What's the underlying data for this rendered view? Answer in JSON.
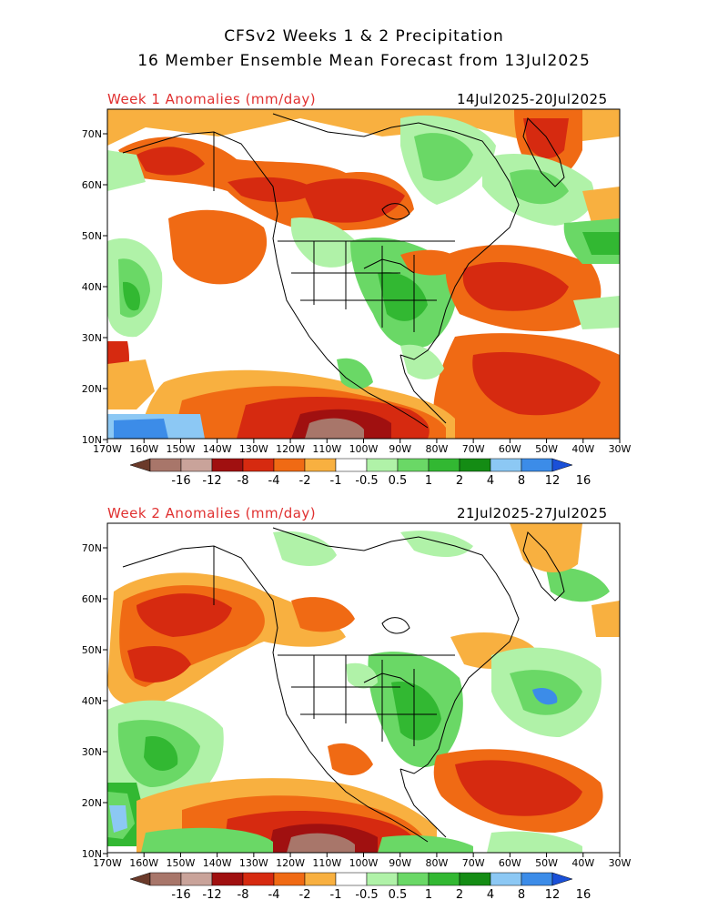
{
  "title_line1": "CFSv2 Weeks 1 & 2 Precipitation",
  "title_line2": "16 Member Ensemble Mean Forecast from 13Jul2025",
  "panels": [
    {
      "label": "Week 1 Anomalies (mm/day)",
      "dates": "14Jul2025-20Jul2025"
    },
    {
      "label": "Week 2 Anomalies (mm/day)",
      "dates": "21Jul2025-27Jul2025"
    }
  ],
  "lat_labels": [
    "70N",
    "60N",
    "50N",
    "40N",
    "30N",
    "20N",
    "10N"
  ],
  "lon_labels": [
    "170W",
    "160W",
    "150W",
    "140W",
    "130W",
    "120W",
    "110W",
    "100W",
    "90W",
    "80W",
    "70W",
    "60W",
    "50W",
    "40W",
    "30W"
  ],
  "colorbar": {
    "labels": [
      "-16",
      "-12",
      "-8",
      "-4",
      "-2",
      "-1",
      "-0.5",
      "0.5",
      "1",
      "2",
      "4",
      "8",
      "12",
      "16"
    ],
    "colors": [
      "#6b3a2a",
      "#a8766a",
      "#c9a39a",
      "#a01010",
      "#d62a10",
      "#f06a14",
      "#f8b040",
      "#ffffff",
      "#b0f2a8",
      "#6ad866",
      "#32b832",
      "#148c14",
      "#8cc8f4",
      "#3c8ce8",
      "#1a50d8"
    ]
  },
  "palette": {
    "dry_extreme": "#6b3a2a",
    "dry_strong": "#a01010",
    "dry": "#d62a10",
    "dry_mod": "#f06a14",
    "dry_light": "#f8b040",
    "wet_light": "#b0f2a8",
    "wet": "#6ad866",
    "wet_mod": "#32b832",
    "wet_strong": "#148c14",
    "wet_blue": "#3c8ce8"
  }
}
